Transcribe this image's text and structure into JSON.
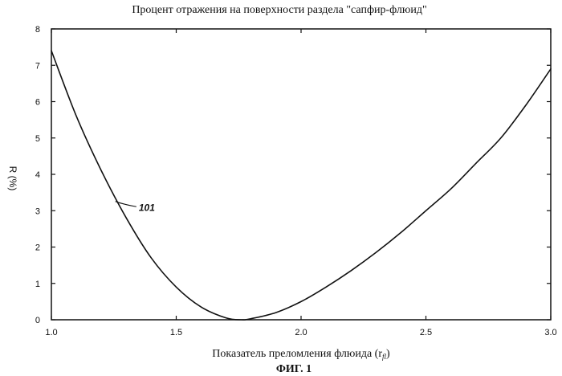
{
  "chart_data": {
    "type": "line",
    "title": "Процент отражения на поверхности раздела \"сапфир-флюид\"",
    "xlabel": "Показатель преломления флюида (r",
    "xlabel_sub": "fl",
    "xlabel_close": ")",
    "ylabel": "R (%)",
    "figure_label": "ФИГ. 1",
    "xlim": [
      1.0,
      3.0
    ],
    "ylim": [
      0,
      8
    ],
    "x_ticks": [
      "1.0",
      "1.5",
      "2.0",
      "2.5",
      "3.0"
    ],
    "y_ticks": [
      "0",
      "1",
      "2",
      "3",
      "4",
      "5",
      "6",
      "7",
      "8"
    ],
    "grid": false,
    "series": [
      {
        "x": [
          1.0,
          1.1,
          1.2,
          1.3,
          1.4,
          1.5,
          1.6,
          1.7,
          1.76,
          1.8,
          1.9,
          2.0,
          2.1,
          2.2,
          2.3,
          2.4,
          2.5,
          2.6,
          2.7,
          2.8,
          2.9,
          3.0
        ],
        "y": [
          7.4,
          5.6,
          4.1,
          2.8,
          1.7,
          0.9,
          0.35,
          0.05,
          0.0,
          0.03,
          0.2,
          0.5,
          0.9,
          1.35,
          1.85,
          2.4,
          3.0,
          3.6,
          4.3,
          5.0,
          5.9,
          6.9
        ]
      }
    ],
    "annotations": [
      {
        "text": "101",
        "x": 1.35,
        "y": 3.0,
        "target_x": 1.25,
        "target_y": 3.3
      }
    ]
  }
}
